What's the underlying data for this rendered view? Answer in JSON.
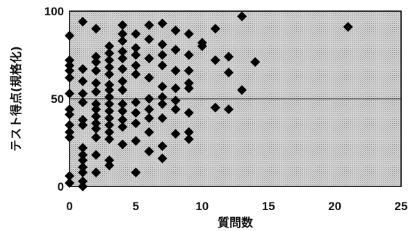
{
  "chart_data": {
    "type": "scatter",
    "xlabel": "質問数",
    "ylabel": "テスト得点(規格化)",
    "xlim": [
      0,
      25
    ],
    "ylim": [
      0,
      100
    ],
    "x_ticks": [
      "0",
      "5",
      "10",
      "15",
      "20",
      "25"
    ],
    "y_ticks": [
      "0",
      "50",
      "100"
    ],
    "reference_line_y": 50,
    "plot_background": "#c8c8c8",
    "marker_color": "#000000",
    "marker_shape": "diamond",
    "points": [
      [
        0,
        86
      ],
      [
        0,
        72
      ],
      [
        0,
        69
      ],
      [
        0,
        66
      ],
      [
        0,
        62
      ],
      [
        0,
        53
      ],
      [
        0,
        44
      ],
      [
        0,
        41
      ],
      [
        0,
        35
      ],
      [
        0,
        31
      ],
      [
        0,
        28
      ],
      [
        0,
        6
      ],
      [
        0,
        2
      ],
      [
        1,
        94
      ],
      [
        1,
        67
      ],
      [
        1,
        60
      ],
      [
        1,
        53
      ],
      [
        1,
        48
      ],
      [
        1,
        38
      ],
      [
        1,
        35
      ],
      [
        1,
        22
      ],
      [
        1,
        18
      ],
      [
        1,
        15
      ],
      [
        1,
        11
      ],
      [
        1,
        8
      ],
      [
        1,
        3
      ],
      [
        1,
        0
      ],
      [
        2,
        90
      ],
      [
        2,
        74
      ],
      [
        2,
        71
      ],
      [
        2,
        66
      ],
      [
        2,
        59
      ],
      [
        2,
        54
      ],
      [
        2,
        47
      ],
      [
        2,
        44
      ],
      [
        2,
        40
      ],
      [
        2,
        36
      ],
      [
        2,
        33
      ],
      [
        2,
        28
      ],
      [
        2,
        18
      ],
      [
        2,
        8
      ],
      [
        3,
        80
      ],
      [
        3,
        76
      ],
      [
        3,
        72
      ],
      [
        3,
        68
      ],
      [
        3,
        64
      ],
      [
        3,
        58
      ],
      [
        3,
        55
      ],
      [
        3,
        51
      ],
      [
        3,
        47
      ],
      [
        3,
        43
      ],
      [
        3,
        39
      ],
      [
        3,
        35
      ],
      [
        3,
        31
      ],
      [
        3,
        27
      ],
      [
        3,
        15
      ],
      [
        3,
        12
      ],
      [
        4,
        92
      ],
      [
        4,
        87
      ],
      [
        4,
        83
      ],
      [
        4,
        77
      ],
      [
        4,
        73
      ],
      [
        4,
        67
      ],
      [
        4,
        60
      ],
      [
        4,
        55
      ],
      [
        4,
        47
      ],
      [
        4,
        43
      ],
      [
        4,
        38
      ],
      [
        4,
        34
      ],
      [
        4,
        24
      ],
      [
        5,
        87
      ],
      [
        5,
        79
      ],
      [
        5,
        75
      ],
      [
        5,
        69
      ],
      [
        5,
        64
      ],
      [
        5,
        48
      ],
      [
        5,
        42
      ],
      [
        5,
        36
      ],
      [
        5,
        26
      ],
      [
        5,
        8
      ],
      [
        6,
        92
      ],
      [
        6,
        84
      ],
      [
        6,
        73
      ],
      [
        6,
        62
      ],
      [
        6,
        50
      ],
      [
        6,
        44
      ],
      [
        6,
        39
      ],
      [
        6,
        31
      ],
      [
        6,
        20
      ],
      [
        7,
        93
      ],
      [
        7,
        81
      ],
      [
        7,
        75
      ],
      [
        7,
        69
      ],
      [
        7,
        57
      ],
      [
        7,
        51
      ],
      [
        7,
        47
      ],
      [
        7,
        39
      ],
      [
        7,
        23
      ],
      [
        7,
        16
      ],
      [
        8,
        89
      ],
      [
        8,
        78
      ],
      [
        8,
        66
      ],
      [
        8,
        56
      ],
      [
        8,
        49
      ],
      [
        8,
        44
      ],
      [
        8,
        30
      ],
      [
        9,
        87
      ],
      [
        9,
        75
      ],
      [
        9,
        66
      ],
      [
        9,
        59
      ],
      [
        9,
        56
      ],
      [
        9,
        42
      ],
      [
        9,
        31
      ],
      [
        9,
        27
      ],
      [
        10,
        80
      ],
      [
        10,
        82
      ],
      [
        11,
        90
      ],
      [
        11,
        72
      ],
      [
        11,
        45
      ],
      [
        12,
        74
      ],
      [
        12,
        65
      ],
      [
        12,
        44
      ],
      [
        13,
        97
      ],
      [
        13,
        55
      ],
      [
        14,
        71
      ],
      [
        21,
        91
      ]
    ]
  }
}
